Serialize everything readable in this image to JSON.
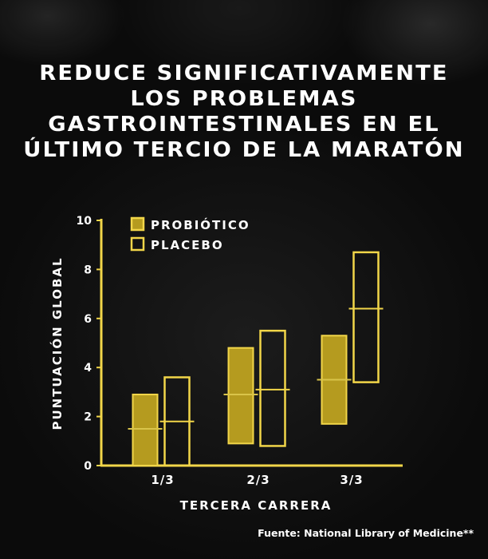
{
  "header": {
    "title_lines": [
      "REDUCE SIGNIFICATIVAMENTE",
      "LOS PROBLEMAS",
      "GASTROINTESTINALES EN EL",
      "ÚLTIMO TERCIO DE LA MARATÓN"
    ]
  },
  "source": "Fuente: National Library of Medicine**",
  "colors": {
    "accent": "#f2d649",
    "probiotic_fill": "#b59b1f",
    "text": "#ffffff"
  },
  "chart_data": {
    "type": "box",
    "xlabel": "TERCERA CARRERA",
    "ylabel": "PUNTUACIÓN GLOBAL",
    "categories": [
      "1/3",
      "2/3",
      "3/3"
    ],
    "ylim": [
      0,
      10
    ],
    "yticks": [
      0,
      2,
      4,
      6,
      8,
      10
    ],
    "legend_position": "top-left",
    "series": [
      {
        "name": "PROBIÓTICO",
        "style": "filled",
        "boxes": [
          {
            "low": 0,
            "high": 2.9,
            "median": 1.5
          },
          {
            "low": 0.9,
            "high": 4.8,
            "median": 2.9
          },
          {
            "low": 1.7,
            "high": 5.3,
            "median": 3.5
          }
        ]
      },
      {
        "name": "PLACEBO",
        "style": "outline",
        "boxes": [
          {
            "low": 0,
            "high": 3.6,
            "median": 1.8
          },
          {
            "low": 0.8,
            "high": 5.5,
            "median": 3.1
          },
          {
            "low": 3.4,
            "high": 8.7,
            "median": 6.4
          }
        ]
      }
    ]
  }
}
